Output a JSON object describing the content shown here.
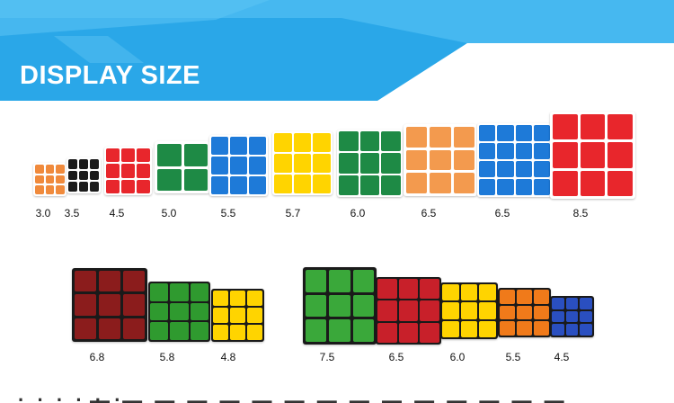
{
  "header": {
    "title": "DISPLAY SIZE"
  },
  "row1": {
    "cubes": [
      {
        "label": "3.0",
        "grid": 3,
        "color": "#f08a3c",
        "frame": "#ffffff"
      },
      {
        "label": "3.5",
        "grid": 3,
        "color": "#1a1a1a",
        "frame": "#ffffff"
      },
      {
        "label": "4.5",
        "grid": 3,
        "color": "#e8262c",
        "frame": "#ffffff"
      },
      {
        "label": "5.0",
        "grid": 2,
        "color": "#1e8a45",
        "frame": "#ffffff"
      },
      {
        "label": "5.5",
        "grid": 3,
        "color": "#1e7ad8",
        "frame": "#ffffff"
      },
      {
        "label": "5.7",
        "grid": 3,
        "color": "#ffd400",
        "frame": "#ffffff"
      },
      {
        "label": "6.0",
        "grid": 3,
        "color": "#1e8a45",
        "frame": "#ffffff"
      },
      {
        "label": "6.5",
        "grid": 3,
        "color": "#f39a4e",
        "frame": "#ffffff"
      },
      {
        "label": "6.5",
        "grid": 4,
        "color": "#1e7ad8",
        "frame": "#ffffff"
      },
      {
        "label": "8.5",
        "grid": 3,
        "color": "#e8262c",
        "frame": "#ffffff"
      }
    ]
  },
  "row2": {
    "cubes": [
      {
        "label": "6.8",
        "grid": 3,
        "color": "#8b1c1c",
        "frame": "#1a1a1a"
      },
      {
        "label": "5.8",
        "grid": 3,
        "color": "#2f9a2f",
        "frame": "#1a1a1a"
      },
      {
        "label": "4.8",
        "grid": 3,
        "color": "#ffd400",
        "frame": "#1a1a1a"
      }
    ]
  },
  "row3": {
    "cubes": [
      {
        "label": "7.5",
        "grid": 3,
        "color": "#3aa83a",
        "frame": "#1a1a1a"
      },
      {
        "label": "6.5",
        "grid": 3,
        "color": "#c8202a",
        "frame": "#1a1a1a"
      },
      {
        "label": "6.0",
        "grid": 3,
        "color": "#ffd400",
        "frame": "#1a1a1a"
      },
      {
        "label": "5.5",
        "grid": 3,
        "color": "#f07a1a",
        "frame": "#1a1a1a"
      },
      {
        "label": "4.5",
        "grid": 3,
        "color": "#2a4fc0",
        "frame": "#1a1a1a"
      }
    ]
  },
  "colors": {
    "banner_light": "#4ab8ef",
    "banner_dark": "#1f9be0"
  }
}
